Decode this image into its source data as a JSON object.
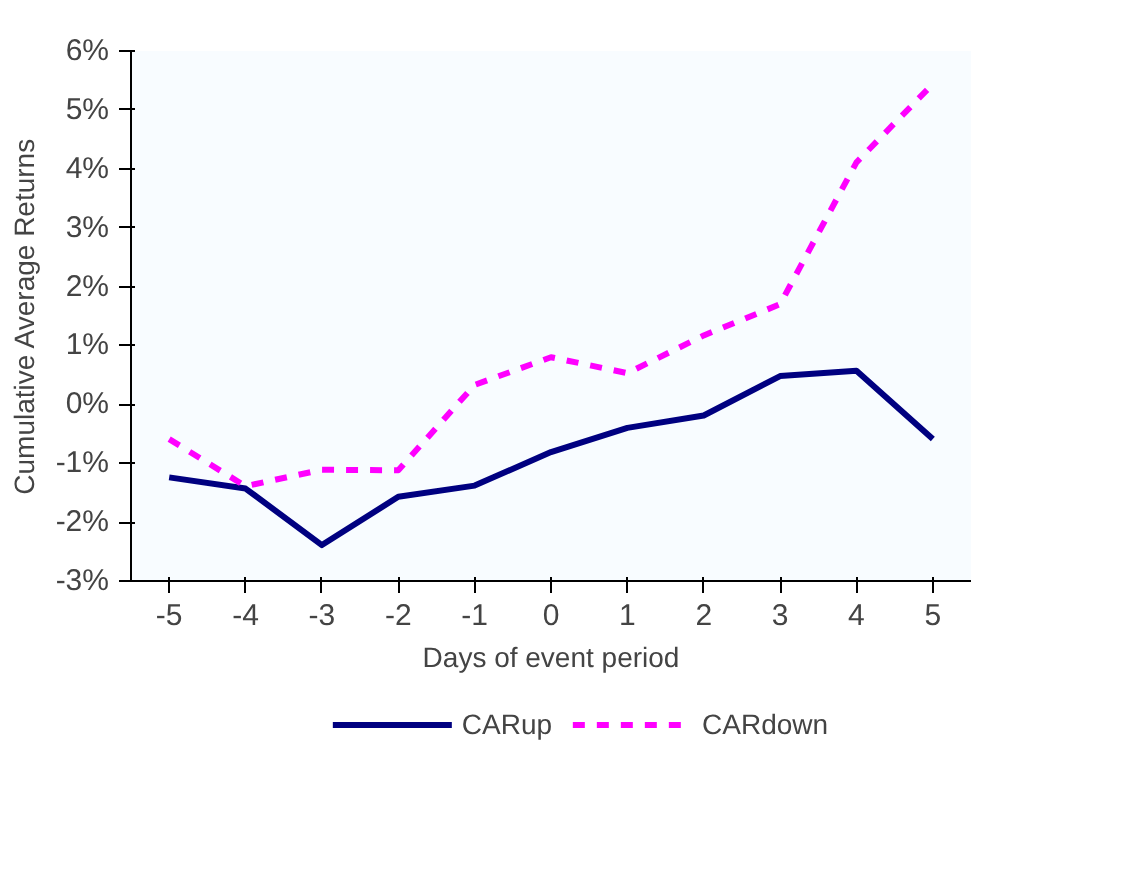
{
  "chart_data": {
    "type": "line",
    "xlabel": "Days of event period",
    "ylabel": "Cumulative Average Returns",
    "categories": [
      "-5",
      "-4",
      "-3",
      "-2",
      "-1",
      "0",
      "1",
      "2",
      "3",
      "4",
      "5"
    ],
    "series": [
      {
        "name": "CARup",
        "color": "#000080",
        "line_style": "solid",
        "values": [
          -1.24,
          -1.43,
          -2.39,
          -1.57,
          -1.38,
          -0.81,
          -0.4,
          -0.19,
          0.48,
          0.57,
          -0.59
        ]
      },
      {
        "name": "CARdown",
        "color": "#ff00ff",
        "line_style": "dashed",
        "values": [
          -0.59,
          -1.39,
          -1.11,
          -1.12,
          0.33,
          0.8,
          0.53,
          1.17,
          1.7,
          4.11,
          5.44
        ]
      }
    ],
    "ylim": [
      -3,
      6
    ],
    "yticks": [
      {
        "value": -3,
        "label": "-3%"
      },
      {
        "value": -2,
        "label": "-2%"
      },
      {
        "value": -1,
        "label": "-1%"
      },
      {
        "value": 0,
        "label": "0%"
      },
      {
        "value": 1,
        "label": "1%"
      },
      {
        "value": 2,
        "label": "2%"
      },
      {
        "value": 3,
        "label": "3%"
      },
      {
        "value": 4,
        "label": "4%"
      },
      {
        "value": 5,
        "label": "5%"
      },
      {
        "value": 6,
        "label": "6%"
      }
    ],
    "grid": false,
    "legend": "bottom",
    "marker": "none"
  }
}
